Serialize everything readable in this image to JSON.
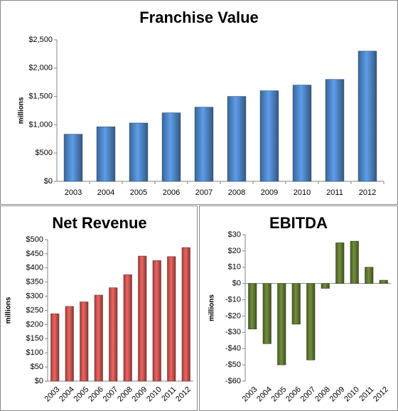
{
  "chart_data": [
    {
      "type": "bar",
      "title": "Franchise Value",
      "y_label": "millions",
      "categories": [
        "2003",
        "2004",
        "2005",
        "2006",
        "2007",
        "2008",
        "2009",
        "2010",
        "2011",
        "2012"
      ],
      "values": [
        832,
        963,
        1030,
        1210,
        1310,
        1500,
        1600,
        1700,
        1800,
        2300
      ],
      "color": "#4a7ebb",
      "ylim": [
        0,
        2500
      ],
      "yticks": [
        {
          "value": 0,
          "label": "$0"
        },
        {
          "value": 500,
          "label": "$500"
        },
        {
          "value": 1000,
          "label": "$1,000"
        },
        {
          "value": 1500,
          "label": "$1,500"
        },
        {
          "value": 2000,
          "label": "$2,000"
        },
        {
          "value": 2500,
          "label": "$2,500"
        }
      ]
    },
    {
      "type": "bar",
      "title": "Net Revenue",
      "y_label": "millions",
      "categories": [
        "2003",
        "2004",
        "2005",
        "2006",
        "2007",
        "2008",
        "2009",
        "2010",
        "2011",
        "2012"
      ],
      "values": [
        238,
        264,
        280,
        304,
        330,
        376,
        442,
        426,
        440,
        472
      ],
      "color": "#c0504d",
      "ylim": [
        0,
        500
      ],
      "yticks": [
        {
          "value": 0,
          "label": "$0"
        },
        {
          "value": 50,
          "label": "$50"
        },
        {
          "value": 100,
          "label": "$100"
        },
        {
          "value": 150,
          "label": "$150"
        },
        {
          "value": 200,
          "label": "$200"
        },
        {
          "value": 250,
          "label": "$250"
        },
        {
          "value": 300,
          "label": "$300"
        },
        {
          "value": 350,
          "label": "$350"
        },
        {
          "value": 400,
          "label": "$400"
        },
        {
          "value": 450,
          "label": "$450"
        },
        {
          "value": 500,
          "label": "$500"
        }
      ]
    },
    {
      "type": "bar",
      "title": "EBITDA",
      "y_label": "millions",
      "categories": [
        "2003",
        "2004",
        "2005",
        "2006",
        "2007",
        "2008",
        "2009",
        "2010",
        "2011",
        "2012"
      ],
      "values": [
        -28,
        -37,
        -50,
        -25,
        -47,
        -3,
        25,
        26,
        10,
        2
      ],
      "color": "#5c7230",
      "ylim": [
        -60,
        30
      ],
      "yticks": [
        {
          "value": -60,
          "label": "-$60"
        },
        {
          "value": -50,
          "label": "-$50"
        },
        {
          "value": -40,
          "label": "-$40"
        },
        {
          "value": -30,
          "label": "-$30"
        },
        {
          "value": -20,
          "label": "-$20"
        },
        {
          "value": -10,
          "label": "-$10"
        },
        {
          "value": 0,
          "label": "$0"
        },
        {
          "value": 10,
          "label": "$10"
        },
        {
          "value": 20,
          "label": "$20"
        },
        {
          "value": 30,
          "label": "$30"
        }
      ]
    }
  ]
}
